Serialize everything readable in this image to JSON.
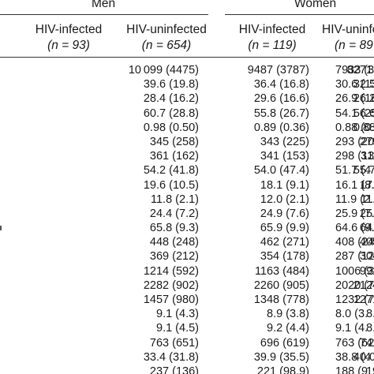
{
  "groups": {
    "men": "Men",
    "women": "Women"
  },
  "columns": [
    {
      "label": "HIV-infected",
      "n": "(n = 93)"
    },
    {
      "label": "HIV-uninfected",
      "n": "(n = 654)"
    },
    {
      "label": "HIV-infected",
      "n": "(n = 119)"
    },
    {
      "label": "HIV-uninfe",
      "n": "(n = 89"
    }
  ],
  "rows": [
    [
      "10 099 (4475)",
      "9487 (3787)",
      "8271 (3136)",
      "7933 (30"
    ],
    [
      "39.6 (19.8)",
      "36.4 (16.8)",
      "32.5 (14.5)",
      "30.6 (13"
    ],
    [
      "28.4 (16.2)",
      "29.6 (16.6)",
      "26.2 (14.8)",
      "26.9 (16"
    ],
    [
      "60.7 (28.8)",
      "55.8 (26.7)",
      "56.6 (27.9)",
      "54.1 (25"
    ],
    [
      "0.98 (0.50)",
      "0.89 (0.36)",
      "0.88 (0.38)",
      "0.88 (0."
    ],
    [
      "345 (258)",
      "343 (225)",
      "279 (191)",
      "293 (20"
    ],
    [
      "361 (162)",
      "341 (153)",
      "311 (131)",
      "298 (13"
    ],
    [
      "54.2 (41.8)",
      "54.0 (47.4)",
      "55.7 (47.9)",
      "51.7 (4"
    ],
    [
      "19.6 (10.5)",
      "18.1 (9.1)",
      "17.2 (8.2)",
      "16.1 (8."
    ],
    [
      "11.8 (2.1)",
      "12.0 (2.1)",
      "11.6 (2.1)",
      "11.9 (2."
    ],
    [
      "24.4 (7.2)",
      "24.9 (7.6)",
      "25.5 (7.0)",
      "25.9 (7."
    ],
    [
      "65.8 (9.3)",
      "65.9 (9.9)",
      "64.5 (9.4)",
      "64.6 (9."
    ],
    [
      "448 (248)",
      "462 (271)",
      "405 (213)",
      "408 (24"
    ],
    [
      "369 (212)",
      "354 (178)",
      "304 (129)",
      "287 (12"
    ],
    [
      "1214 (592)",
      "1163 (484)",
      "991 (367)",
      "1006 (3"
    ],
    [
      "2282 (902)",
      "2260 (905)",
      "2124 (853)",
      "2020 (7"
    ],
    [
      "1457 (980)",
      "1348 (778)",
      "1271 (701)",
      "1232 (70"
    ],
    [
      "9.1 (4.3)",
      "8.9 (3.8)",
      "8.2 (3.4)",
      "8.0 (3."
    ],
    [
      "9.1 (4.5)",
      "9.2 (4.4)",
      "8.9 (4.3)",
      "9.1 (4."
    ],
    [
      "763 (651)",
      "696 (619)",
      "741 (577)",
      "763 (62"
    ],
    [
      "33.4 (31.8)",
      "39.9 (35.5)",
      "40.0 (46.7)",
      "38.8 (4"
    ],
    [
      "237 (136)",
      "221 (98.9)",
      "197 (81)",
      "188 (9"
    ]
  ]
}
